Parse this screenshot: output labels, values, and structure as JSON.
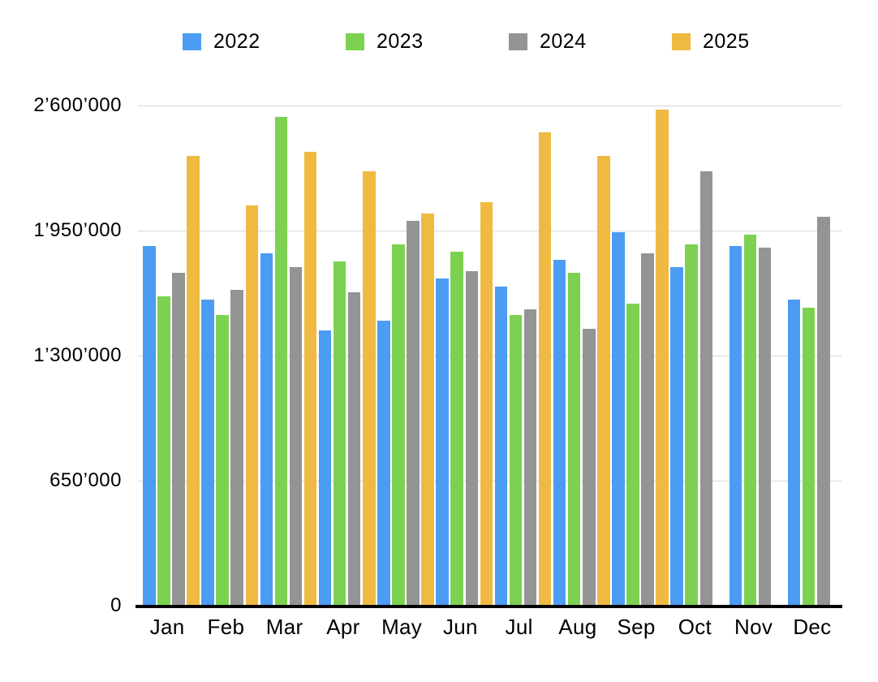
{
  "chart_data": {
    "type": "bar",
    "title": "",
    "categories": [
      "Jan",
      "Feb",
      "Mar",
      "Apr",
      "May",
      "Jun",
      "Jul",
      "Aug",
      "Sep",
      "Oct",
      "Nov",
      "Dec"
    ],
    "series": [
      {
        "name": "2022",
        "color": "#4b9cf2",
        "values": [
          1870000,
          1590000,
          1830000,
          1430000,
          1480000,
          1700000,
          1660000,
          1800000,
          1940000,
          1760000,
          1870000,
          1590000
        ]
      },
      {
        "name": "2023",
        "color": "#7cd250",
        "values": [
          1610000,
          1510000,
          2540000,
          1790000,
          1880000,
          1840000,
          1510000,
          1730000,
          1570000,
          1880000,
          1930000,
          1550000
        ]
      },
      {
        "name": "2024",
        "color": "#949494",
        "values": [
          1730000,
          1640000,
          1760000,
          1630000,
          2000000,
          1740000,
          1540000,
          1440000,
          1830000,
          2260000,
          1860000,
          2020000
        ]
      },
      {
        "name": "2025",
        "color": "#eeba42",
        "values": [
          2340000,
          2080000,
          2360000,
          2260000,
          2040000,
          2100000,
          2460000,
          2340000,
          2580000,
          null,
          null,
          null
        ]
      }
    ],
    "y_ticks": [
      {
        "value": 0,
        "label": "0"
      },
      {
        "value": 650000,
        "label": "650’000"
      },
      {
        "value": 1300000,
        "label": "1’300’000"
      },
      {
        "value": 1950000,
        "label": "1’950’000"
      },
      {
        "value": 2600000,
        "label": "2’600’000"
      }
    ],
    "ylim": [
      0,
      2600000
    ],
    "grid": true,
    "legend_position": "top",
    "xlabel": "",
    "ylabel": ""
  },
  "colors": {
    "background": "#ffffff",
    "gridline": "#d8d8d8",
    "axis": "#000000",
    "text": "#000000"
  }
}
